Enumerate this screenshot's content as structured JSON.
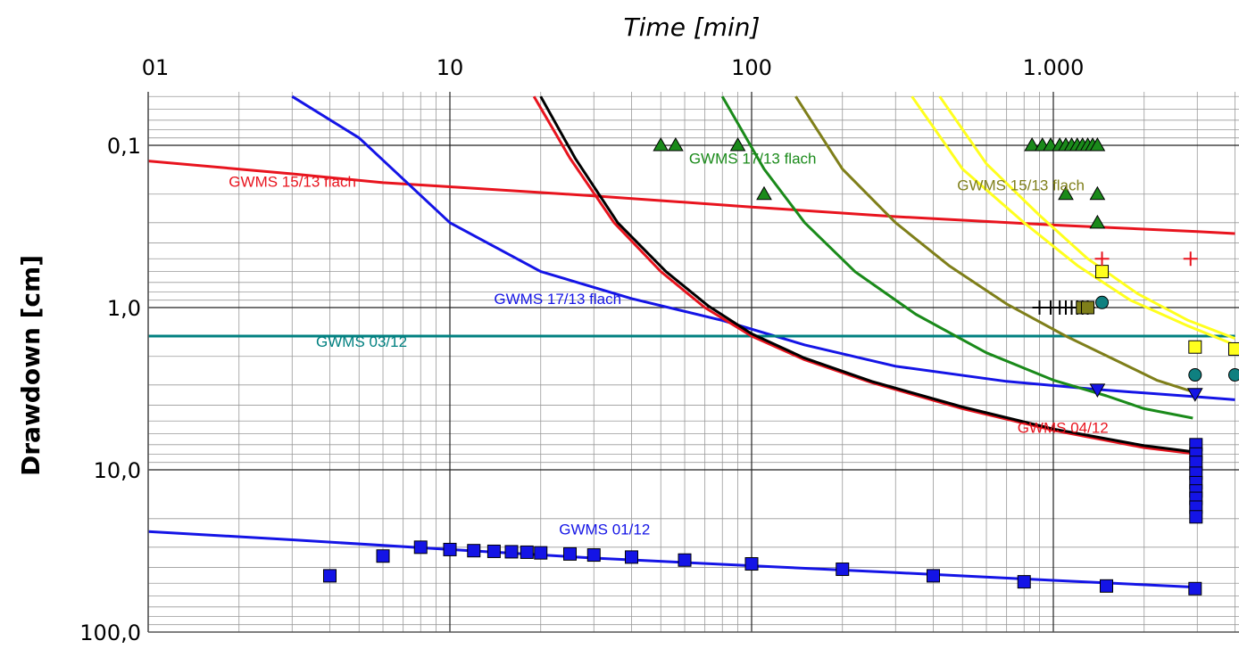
{
  "chart_data": {
    "type": "scatter",
    "xlabel": "Time [min]",
    "ylabel": "Drawdown [cm]",
    "xscale": "log",
    "yscale": "log",
    "yaxis_inverted": true,
    "xlim": [
      1,
      4000
    ],
    "ylim": [
      0.05,
      100
    ],
    "grid": true,
    "x_ticks": [
      {
        "value": 1,
        "label": "01"
      },
      {
        "value": 10,
        "label": "10"
      },
      {
        "value": 100,
        "label": "100"
      },
      {
        "value": 1000,
        "label": "1.000"
      }
    ],
    "y_ticks": [
      {
        "value": 0.1,
        "label": "0,1"
      },
      {
        "value": 1,
        "label": "1,0"
      },
      {
        "value": 10,
        "label": "10,0"
      },
      {
        "value": 100,
        "label": "100,0"
      }
    ],
    "curves": [
      {
        "color": "#e8141e",
        "x": [
          1,
          3,
          6,
          10,
          30,
          100,
          300,
          1000,
          3000,
          4000
        ],
        "y": [
          0.125,
          0.15,
          0.17,
          0.18,
          0.205,
          0.24,
          0.275,
          0.31,
          0.34,
          0.35
        ]
      },
      {
        "color": "#1414e6",
        "x": [
          3,
          5,
          10,
          20,
          40,
          80,
          150,
          300,
          700,
          1400,
          3000,
          4000
        ],
        "y": [
          0.05,
          0.09,
          0.3,
          0.6,
          0.88,
          1.2,
          1.7,
          2.3,
          2.85,
          3.2,
          3.55,
          3.7
        ]
      },
      {
        "color": "#008080",
        "x": [
          1,
          4000
        ],
        "y": [
          1.5,
          1.5
        ]
      },
      {
        "color": "#e8141e",
        "x": [
          19,
          25,
          35,
          50,
          70,
          100,
          150,
          250,
          500,
          1000,
          2000,
          3000
        ],
        "y": [
          0.05,
          0.12,
          0.3,
          0.6,
          1.0,
          1.5,
          2.1,
          2.9,
          4.2,
          5.7,
          7.3,
          8.0
        ]
      },
      {
        "color": "#000000",
        "x": [
          20,
          26,
          36,
          52,
          72,
          100,
          150,
          250,
          500,
          1000,
          2000,
          3000
        ],
        "y": [
          0.05,
          0.12,
          0.3,
          0.6,
          0.98,
          1.45,
          2.05,
          2.85,
          4.1,
          5.6,
          7.1,
          7.8
        ]
      },
      {
        "color": "#1a8a1a",
        "x": [
          80,
          110,
          150,
          220,
          350,
          600,
          1000,
          1500,
          2000,
          2900
        ],
        "y": [
          0.05,
          0.14,
          0.3,
          0.6,
          1.1,
          1.9,
          2.8,
          3.5,
          4.2,
          4.8
        ]
      },
      {
        "color": "#7f7f1a",
        "x": [
          140,
          200,
          300,
          450,
          700,
          1100,
          1600,
          2200,
          2900
        ],
        "y": [
          0.05,
          0.14,
          0.3,
          0.55,
          0.95,
          1.5,
          2.1,
          2.8,
          3.3
        ]
      },
      {
        "color": "#ffff1e",
        "x": [
          340,
          500,
          800,
          1200,
          1800,
          2800,
          4000
        ],
        "y": [
          0.05,
          0.14,
          0.3,
          0.55,
          0.9,
          1.3,
          1.7
        ]
      },
      {
        "color": "#ffff1e",
        "x": [
          420,
          600,
          900,
          1300,
          1900,
          2800,
          4000
        ],
        "y": [
          0.05,
          0.13,
          0.27,
          0.5,
          0.82,
          1.2,
          1.55
        ]
      },
      {
        "color": "#1414e6",
        "x": [
          1,
          3,
          10,
          30,
          100,
          300,
          1000,
          3000
        ],
        "y": [
          24,
          27,
          31,
          35,
          39,
          43,
          48,
          53
        ]
      }
    ],
    "points": [
      {
        "series": "green-triangles",
        "color": "#1a8a1a",
        "shape": "triangle-up",
        "x": [
          50,
          56,
          90,
          110,
          850,
          920,
          980,
          1050,
          1100,
          1150,
          1200,
          1250,
          1300,
          1350,
          1400,
          1100,
          1400,
          1400
        ],
        "y": [
          0.1,
          0.1,
          0.1,
          0.2,
          0.1,
          0.1,
          0.1,
          0.1,
          0.1,
          0.1,
          0.1,
          0.1,
          0.1,
          0.1,
          0.1,
          0.2,
          0.2,
          0.3
        ]
      },
      {
        "series": "yellow-squares",
        "color": "#ffff1e",
        "shape": "square",
        "x": [
          1450,
          2950,
          4000
        ],
        "y": [
          0.6,
          1.75,
          1.8
        ]
      },
      {
        "series": "red-plus",
        "color": "#e8141e",
        "shape": "plus",
        "x": [
          1450,
          2850
        ],
        "y": [
          0.5,
          0.5
        ]
      },
      {
        "series": "teal-circles",
        "color": "#0f8080",
        "shape": "circle",
        "x": [
          1450,
          2950,
          4000
        ],
        "y": [
          0.93,
          2.6,
          2.6
        ]
      },
      {
        "series": "black-plus",
        "color": "#000000",
        "shape": "plus",
        "x": [
          900,
          980,
          1050,
          1100,
          1150,
          1200,
          1250,
          1300
        ],
        "y": [
          1,
          1,
          1,
          1,
          1,
          1,
          1,
          1
        ]
      },
      {
        "series": "olive-squares",
        "color": "#7f7f1a",
        "shape": "square",
        "x": [
          1250,
          1300
        ],
        "y": [
          1,
          1
        ]
      },
      {
        "series": "blue-down-triangles",
        "color": "#1414e6",
        "shape": "triangle-down",
        "x": [
          1400,
          2950
        ],
        "y": [
          3.2,
          3.4
        ]
      },
      {
        "series": "blue-squares",
        "color": "#1414e6",
        "shape": "square",
        "x": [
          4,
          6,
          8,
          10,
          12,
          14,
          16,
          18,
          20,
          25,
          30,
          40,
          60,
          100,
          200,
          400,
          800,
          1500,
          2950
        ],
        "y": [
          45,
          34,
          30,
          31,
          31.5,
          31.8,
          32,
          32.2,
          32.5,
          33,
          33.5,
          34.5,
          36,
          38,
          41,
          45,
          49,
          52,
          54
        ]
      },
      {
        "series": "blue-squares-late",
        "color": "#1414e6",
        "shape": "square",
        "x": [
          2970,
          2970,
          2970,
          2970,
          2970,
          2970,
          2970,
          2970,
          2970
        ],
        "y": [
          7,
          8,
          9,
          10.5,
          12,
          13.5,
          15,
          17,
          19.5
        ]
      }
    ],
    "annotations": [
      {
        "text": "GWMS 15/13 flach",
        "color": "#e8141e",
        "x": 1.85,
        "y": 0.18
      },
      {
        "text": "GWMS 17/13 flach",
        "color": "#1a8a1a",
        "x": 62,
        "y": 0.13
      },
      {
        "text": "GWMS 15/13 flach",
        "color": "#7f7f1a",
        "x": 480,
        "y": 0.19
      },
      {
        "text": "GWMS 17/13 flach",
        "color": "#1414e6",
        "x": 14,
        "y": 0.95
      },
      {
        "text": "GWMS 03/12",
        "color": "#008080",
        "x": 3.6,
        "y": 1.75
      },
      {
        "text": "GWMS 04/12",
        "color": "#e8141e",
        "x": 760,
        "y": 5.9
      },
      {
        "text": "GWMS 01/12",
        "color": "#1414e6",
        "x": 23,
        "y": 25
      }
    ]
  }
}
